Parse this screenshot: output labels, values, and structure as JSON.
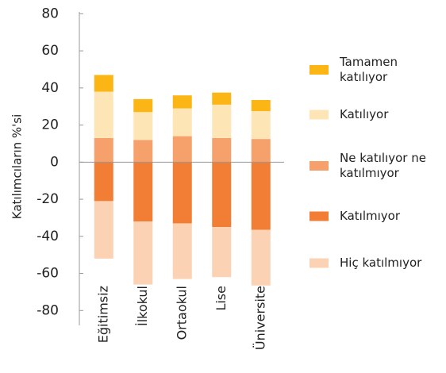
{
  "chart_data": {
    "type": "bar",
    "stacked": true,
    "ylabel": "Katılımcıların %'si",
    "categories": [
      "Eğitimsiz",
      "İlkokul",
      "Ortaokul",
      "Lise",
      "Üniversite"
    ],
    "series": [
      {
        "name": "Tamamen katılıyor",
        "color": "#fbb515",
        "values": [
          9,
          7,
          7,
          6.5,
          6
        ]
      },
      {
        "name": "Katılıyor",
        "color": "#fde5b6",
        "values": [
          25,
          15,
          15,
          18,
          15
        ]
      },
      {
        "name": "Ne katılıyor ne katılmıyor",
        "color": "#f6a06b",
        "values": [
          13,
          12,
          14,
          13,
          12.5
        ]
      },
      {
        "name": "Katılmıyor",
        "color": "#f27e35",
        "values": [
          -21,
          -32,
          -33,
          -35,
          -36.5
        ]
      },
      {
        "name": "Hiç katılmıyor",
        "color": "#fbd2b3",
        "values": [
          -31,
          -34,
          -30,
          -27,
          -30
        ]
      }
    ],
    "ylim": [
      -88,
      81
    ],
    "yticks": [
      80,
      60,
      40,
      20,
      0,
      -20,
      -40,
      -60,
      -80
    ]
  }
}
